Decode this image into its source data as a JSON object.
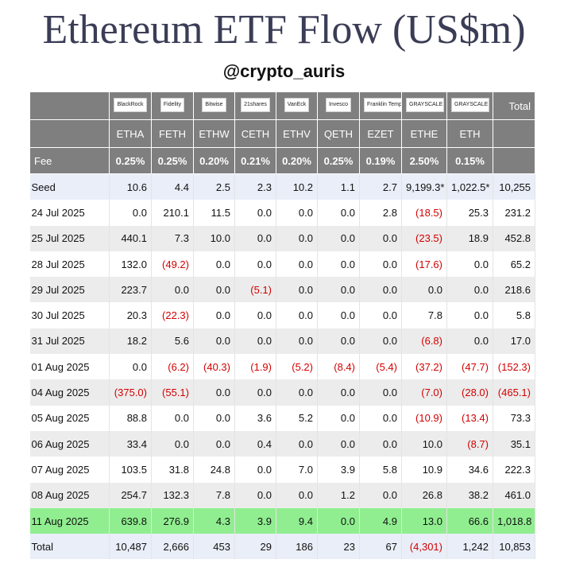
{
  "header": {
    "title": "Ethereum ETF Flow (US$m)",
    "subtitle": "@crypto_auris"
  },
  "table": {
    "brands": [
      "BlackRock",
      "Fidelity",
      "Bitwise",
      "21shares",
      "VanEck",
      "Invesco",
      "Franklin Templeton",
      "GRAYSCALE",
      "GRAYSCALE"
    ],
    "total_header": "Total",
    "tickers": [
      "ETHA",
      "FETH",
      "ETHW",
      "CETH",
      "ETHV",
      "QETH",
      "EZET",
      "ETHE",
      "ETH"
    ],
    "fee_label": "Fee",
    "fees": [
      "0.25%",
      "0.25%",
      "0.20%",
      "0.21%",
      "0.20%",
      "0.25%",
      "0.19%",
      "2.50%",
      "0.15%"
    ],
    "rows": [
      {
        "label": "Seed",
        "cells": [
          "10.6",
          "4.4",
          "2.5",
          "2.3",
          "10.2",
          "1.1",
          "2.7",
          "9,199.3*",
          "1,022.5*",
          "10,255"
        ]
      },
      {
        "label": "24 Jul 2025",
        "cells": [
          "0.0",
          "210.1",
          "11.5",
          "0.0",
          "0.0",
          "0.0",
          "2.8",
          "(18.5)",
          "25.3",
          "231.2"
        ]
      },
      {
        "label": "25 Jul 2025",
        "cells": [
          "440.1",
          "7.3",
          "10.0",
          "0.0",
          "0.0",
          "0.0",
          "0.0",
          "(23.5)",
          "18.9",
          "452.8"
        ]
      },
      {
        "label": "28 Jul 2025",
        "cells": [
          "132.0",
          "(49.2)",
          "0.0",
          "0.0",
          "0.0",
          "0.0",
          "0.0",
          "(17.6)",
          "0.0",
          "65.2"
        ]
      },
      {
        "label": "29 Jul 2025",
        "cells": [
          "223.7",
          "0.0",
          "0.0",
          "(5.1)",
          "0.0",
          "0.0",
          "0.0",
          "0.0",
          "0.0",
          "218.6"
        ]
      },
      {
        "label": "30 Jul 2025",
        "cells": [
          "20.3",
          "(22.3)",
          "0.0",
          "0.0",
          "0.0",
          "0.0",
          "0.0",
          "7.8",
          "0.0",
          "5.8"
        ]
      },
      {
        "label": "31 Jul 2025",
        "cells": [
          "18.2",
          "5.6",
          "0.0",
          "0.0",
          "0.0",
          "0.0",
          "0.0",
          "(6.8)",
          "0.0",
          "17.0"
        ]
      },
      {
        "label": "01 Aug 2025",
        "cells": [
          "0.0",
          "(6.2)",
          "(40.3)",
          "(1.9)",
          "(5.2)",
          "(8.4)",
          "(5.4)",
          "(37.2)",
          "(47.7)",
          "(152.3)"
        ]
      },
      {
        "label": "04 Aug 2025",
        "cells": [
          "(375.0)",
          "(55.1)",
          "0.0",
          "0.0",
          "0.0",
          "0.0",
          "0.0",
          "(7.0)",
          "(28.0)",
          "(465.1)"
        ]
      },
      {
        "label": "05 Aug 2025",
        "cells": [
          "88.8",
          "0.0",
          "0.0",
          "3.6",
          "5.2",
          "0.0",
          "0.0",
          "(10.9)",
          "(13.4)",
          "73.3"
        ]
      },
      {
        "label": "06 Aug 2025",
        "cells": [
          "33.4",
          "0.0",
          "0.0",
          "0.4",
          "0.0",
          "0.0",
          "0.0",
          "10.0",
          "(8.7)",
          "35.1"
        ]
      },
      {
        "label": "07 Aug 2025",
        "cells": [
          "103.5",
          "31.8",
          "24.8",
          "0.0",
          "7.0",
          "3.9",
          "5.8",
          "10.9",
          "34.6",
          "222.3"
        ]
      },
      {
        "label": "08 Aug 2025",
        "cells": [
          "254.7",
          "132.3",
          "7.8",
          "0.0",
          "0.0",
          "1.2",
          "0.0",
          "26.8",
          "38.2",
          "461.0"
        ]
      },
      {
        "label": "11 Aug 2025",
        "cells": [
          "639.8",
          "276.9",
          "4.3",
          "3.9",
          "9.4",
          "0.0",
          "4.9",
          "13.0",
          "66.6",
          "1,018.8"
        ]
      },
      {
        "label": "Total",
        "cells": [
          "10,487",
          "2,666",
          "453",
          "29",
          "186",
          "23",
          "67",
          "(4,301)",
          "1,242",
          "10,853"
        ]
      }
    ]
  }
}
